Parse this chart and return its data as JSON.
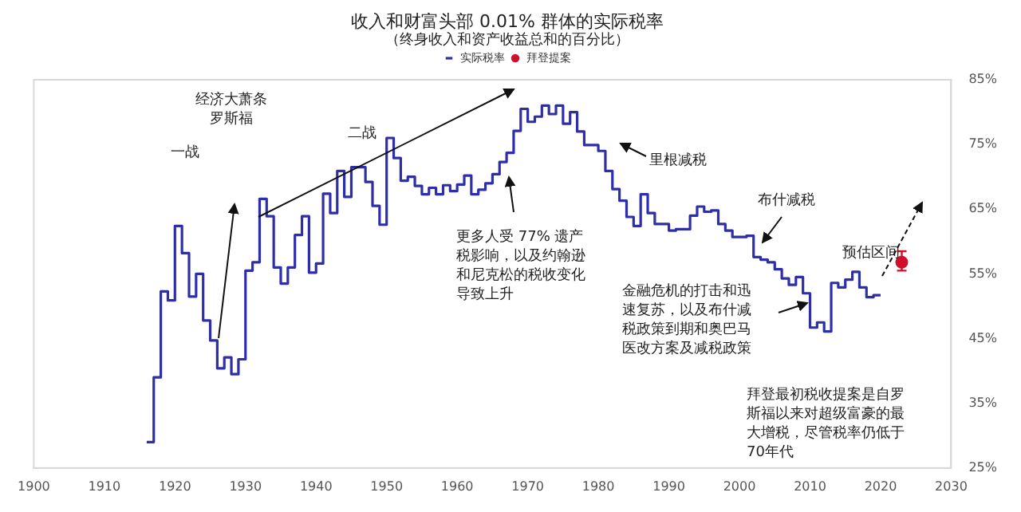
{
  "chart_data": {
    "type": "step",
    "title": "收入和财富头部 0.01% 群体的实际税率",
    "subtitle": "（终身收入和资产收益总和的百分比）",
    "xlim": [
      1900,
      2030
    ],
    "xticks": [
      1900,
      1910,
      1920,
      1930,
      1940,
      1950,
      1960,
      1970,
      1980,
      1990,
      2000,
      2010,
      2020,
      2030
    ],
    "ylim": [
      25,
      85
    ],
    "yticks": [
      {
        "value": 25,
        "label": "25%"
      },
      {
        "value": 35,
        "label": "35%"
      },
      {
        "value": 45,
        "label": "45%"
      },
      {
        "value": 55,
        "label": "55%"
      },
      {
        "value": 65,
        "label": "65%"
      },
      {
        "value": 75,
        "label": "75%"
      },
      {
        "value": 85,
        "label": "85%"
      }
    ],
    "grid": false,
    "legend": "top",
    "series": [
      {
        "name": "实际税率",
        "color": "#2e2ea8",
        "marker": "none",
        "x": [
          1916,
          1917,
          1918,
          1919,
          1920,
          1921,
          1922,
          1923,
          1924,
          1925,
          1926,
          1927,
          1928,
          1929,
          1930,
          1931,
          1932,
          1933,
          1934,
          1935,
          1936,
          1937,
          1938,
          1939,
          1940,
          1941,
          1942,
          1943,
          1944,
          1945,
          1946,
          1947,
          1948,
          1949,
          1950,
          1951,
          1952,
          1953,
          1954,
          1955,
          1956,
          1957,
          1958,
          1959,
          1960,
          1961,
          1962,
          1963,
          1964,
          1965,
          1966,
          1967,
          1968,
          1969,
          1970,
          1971,
          1972,
          1973,
          1974,
          1975,
          1976,
          1977,
          1978,
          1979,
          1980,
          1981,
          1982,
          1983,
          1984,
          1985,
          1986,
          1987,
          1988,
          1989,
          1990,
          1991,
          1992,
          1993,
          1994,
          1995,
          1996,
          1997,
          1998,
          1999,
          2000,
          2001,
          2002,
          2003,
          2004,
          2005,
          2006,
          2007,
          2008,
          2009,
          2010,
          2011,
          2012,
          2013,
          2014,
          2015,
          2016,
          2017,
          2018,
          2019,
          2020
        ],
        "values": [
          29,
          39,
          52.3,
          50.9,
          62.4,
          58.2,
          51.5,
          55,
          47.8,
          44.7,
          40.4,
          42.1,
          39.5,
          41.8,
          55.5,
          56.8,
          66.6,
          63.9,
          56,
          53.5,
          56,
          61,
          63.9,
          55.2,
          56.6,
          67.4,
          64.4,
          70.9,
          66.9,
          71.5,
          71.5,
          69.2,
          65.5,
          62.6,
          76,
          72.9,
          69.4,
          70,
          68.6,
          67.3,
          68.3,
          67.3,
          68.7,
          67.8,
          68.8,
          70.2,
          67.3,
          68,
          69,
          70.4,
          72.3,
          73.7,
          77.1,
          80.5,
          78.5,
          79.3,
          81,
          79.7,
          81,
          78.2,
          80,
          77,
          74.9,
          74.9,
          74,
          70.9,
          68.1,
          66.3,
          63.8,
          62.4,
          67.3,
          64.4,
          62.7,
          62.7,
          61.7,
          61.9,
          61.9,
          64,
          65.4,
          64.6,
          64.8,
          62.7,
          61.7,
          60.7,
          60.7,
          60.9,
          57.6,
          57.2,
          56.8,
          55.7,
          54.3,
          53.3,
          54.5,
          52,
          46.7,
          47.5,
          46.1,
          53.6,
          52.9,
          54.1,
          55.3,
          52.9,
          51.4,
          51.7,
          51.7
        ]
      },
      {
        "name": "拜登提案",
        "type": "scatter",
        "color": "#d0102a",
        "marker": "circle",
        "x": [
          2023
        ],
        "values": [
          56.8
        ],
        "errors": [
          [
            55.5,
            58.5
          ]
        ]
      }
    ],
    "annotations": [
      "一战",
      "经济大萧条罗斯福",
      "二战",
      "更多人受 77% 遗产税影响，以及约翰逊和尼克松的税收变化导致上升",
      "里根减税",
      "布什减税",
      "金融危机的打击和迅速复苏，以及布什减税政策到期和奥巴马医改方案及减税政策",
      "预估区间",
      "拜登最初税收提案是自罗斯福以来对超级富豪的最大增税，尽管税率仍低于70年代"
    ]
  }
}
